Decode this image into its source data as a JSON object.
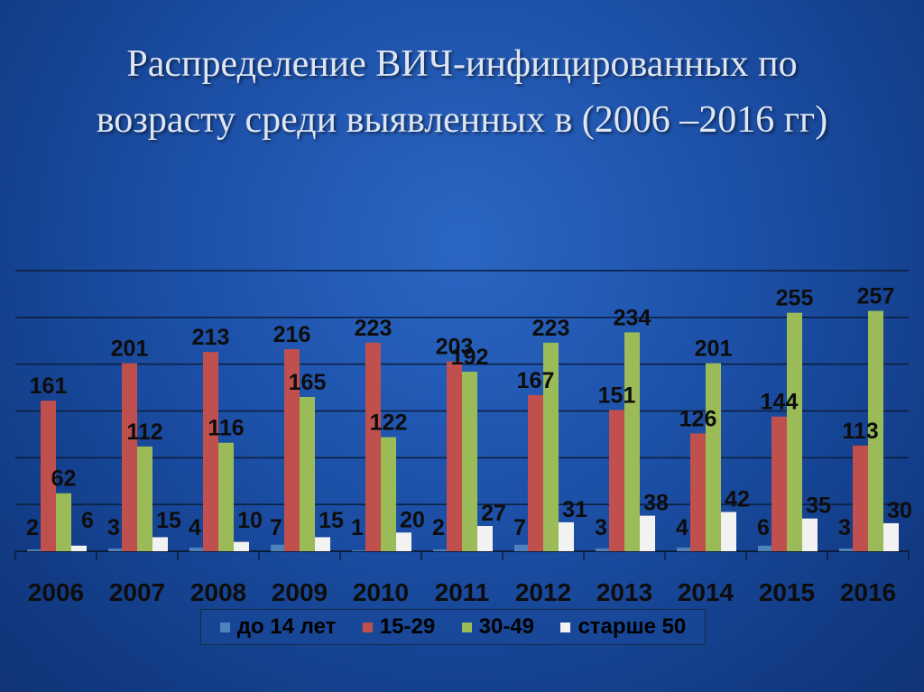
{
  "title": {
    "line1": "Распределение ВИЧ-инфицированных по",
    "line2": "возрасту среди выявленных в (2006 –2016 гг)"
  },
  "chart_data": {
    "type": "bar",
    "title": "Распределение ВИЧ-инфицированных по возрасту среди выявленных в (2006 –2016 гг)",
    "categories": [
      "2006",
      "2007",
      "2008",
      "2009",
      "2010",
      "2011",
      "2012",
      "2013",
      "2014",
      "2015",
      "2016"
    ],
    "series": [
      {
        "name": "до 14 лет",
        "color": "#4f81bd",
        "values": [
          2,
          3,
          4,
          7,
          1,
          2,
          7,
          3,
          4,
          6,
          3
        ]
      },
      {
        "name": "15-29",
        "color": "#c0504d",
        "values": [
          161,
          201,
          213,
          216,
          223,
          203,
          167,
          151,
          126,
          144,
          113
        ]
      },
      {
        "name": "30-49",
        "color": "#9bbb59",
        "values": [
          62,
          112,
          116,
          165,
          122,
          192,
          223,
          234,
          201,
          255,
          257
        ]
      },
      {
        "name": "старше 50",
        "color": "#f2f2f2",
        "values": [
          6,
          15,
          10,
          15,
          20,
          27,
          31,
          38,
          42,
          35,
          30
        ]
      }
    ],
    "ylim": [
      0,
      300
    ],
    "grid": true,
    "legend": "bottom",
    "xlabel": "",
    "ylabel": ""
  }
}
